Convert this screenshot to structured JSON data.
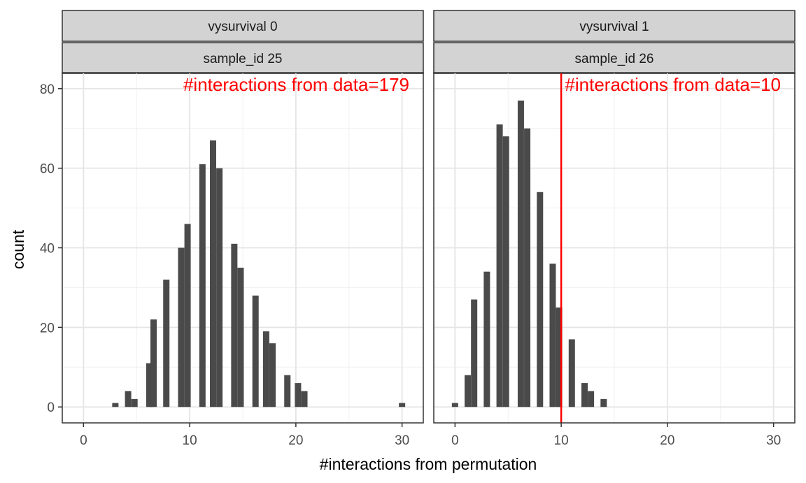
{
  "chart_data": {
    "type": "bar",
    "xlabel": "#interactions from permutation",
    "ylabel": "count",
    "xlim": [
      -2,
      32
    ],
    "ylim": [
      -4,
      84
    ],
    "x_ticks": [
      0,
      10,
      20,
      30
    ],
    "y_ticks": [
      0,
      20,
      40,
      60,
      80
    ],
    "grid": true,
    "bar_color": "#4a4a4a",
    "annotation_color": "#ff0000",
    "strip_fill": "#d3d3d3",
    "panels": [
      {
        "strip_top": "vysurvival 0",
        "strip_bottom": "sample_id 25",
        "annotation": "#interactions from data=179",
        "observed_line_x": null,
        "bins": [
          {
            "x": 3.0,
            "count": 1
          },
          {
            "x": 4.2,
            "count": 4
          },
          {
            "x": 4.8,
            "count": 2
          },
          {
            "x": 6.2,
            "count": 11
          },
          {
            "x": 6.6,
            "count": 22
          },
          {
            "x": 7.8,
            "count": 32
          },
          {
            "x": 9.2,
            "count": 40
          },
          {
            "x": 9.8,
            "count": 46
          },
          {
            "x": 11.2,
            "count": 61
          },
          {
            "x": 12.2,
            "count": 67
          },
          {
            "x": 12.8,
            "count": 60
          },
          {
            "x": 14.2,
            "count": 41
          },
          {
            "x": 14.8,
            "count": 35
          },
          {
            "x": 16.2,
            "count": 28
          },
          {
            "x": 17.2,
            "count": 19
          },
          {
            "x": 17.8,
            "count": 16
          },
          {
            "x": 19.2,
            "count": 8
          },
          {
            "x": 20.2,
            "count": 6
          },
          {
            "x": 20.8,
            "count": 4
          },
          {
            "x": 30.0,
            "count": 1
          }
        ]
      },
      {
        "strip_top": "vysurvival 1",
        "strip_bottom": "sample_id 26",
        "annotation": "#interactions from data=10",
        "observed_line_x": 10,
        "bins": [
          {
            "x": 0.0,
            "count": 1
          },
          {
            "x": 1.2,
            "count": 8
          },
          {
            "x": 1.8,
            "count": 27
          },
          {
            "x": 3.0,
            "count": 34
          },
          {
            "x": 4.2,
            "count": 71
          },
          {
            "x": 4.8,
            "count": 68
          },
          {
            "x": 6.2,
            "count": 77
          },
          {
            "x": 6.8,
            "count": 70
          },
          {
            "x": 8.0,
            "count": 54
          },
          {
            "x": 9.2,
            "count": 36
          },
          {
            "x": 9.8,
            "count": 25
          },
          {
            "x": 11.0,
            "count": 17
          },
          {
            "x": 12.2,
            "count": 6
          },
          {
            "x": 12.8,
            "count": 4
          },
          {
            "x": 14.0,
            "count": 2
          }
        ]
      }
    ]
  }
}
